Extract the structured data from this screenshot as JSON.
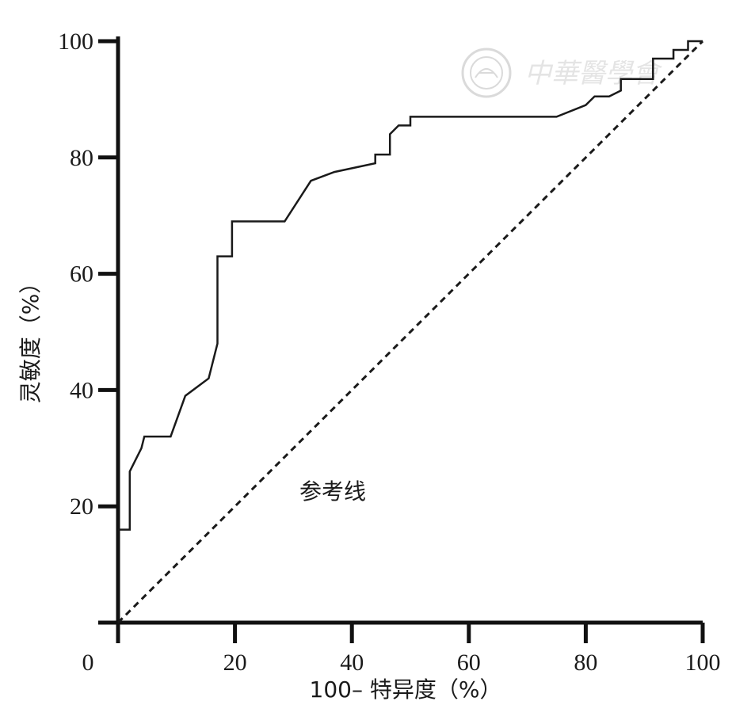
{
  "chart_data": {
    "type": "line",
    "title": "",
    "xlabel": "100– 特异度（%）",
    "ylabel": "灵敏度（%）",
    "xlim": [
      0,
      100
    ],
    "ylim": [
      0,
      100
    ],
    "x_ticks": [
      0,
      20,
      40,
      60,
      80,
      100
    ],
    "x_tick_labels": [
      "0",
      "20",
      "40",
      "60",
      "80",
      "100"
    ],
    "y_ticks": [
      20,
      40,
      60,
      80,
      100
    ],
    "y_tick_labels": [
      "20",
      "40",
      "60",
      "80",
      "100"
    ],
    "grid": false,
    "legend": "none",
    "annotations": [
      {
        "text": "参考线",
        "x": 37,
        "y": 23
      }
    ],
    "series": [
      {
        "style": "solid",
        "color": "#1a1a1a",
        "points": [
          [
            0,
            16
          ],
          [
            2,
            16
          ],
          [
            2,
            26
          ],
          [
            4,
            30
          ],
          [
            4.5,
            32
          ],
          [
            9,
            32
          ],
          [
            11.5,
            39
          ],
          [
            15.5,
            42
          ],
          [
            17,
            48
          ],
          [
            17,
            63
          ],
          [
            19.5,
            63
          ],
          [
            19.5,
            69
          ],
          [
            28.5,
            69
          ],
          [
            33,
            76
          ],
          [
            37,
            77.5
          ],
          [
            44,
            79
          ],
          [
            44,
            80.5
          ],
          [
            46.5,
            80.5
          ],
          [
            46.5,
            84
          ],
          [
            48,
            85.5
          ],
          [
            50,
            85.5
          ],
          [
            50,
            87
          ],
          [
            75,
            87
          ],
          [
            80,
            89
          ],
          [
            81.5,
            90.5
          ],
          [
            84,
            90.5
          ],
          [
            86,
            91.5
          ],
          [
            86,
            93.5
          ],
          [
            91.5,
            93.5
          ],
          [
            91.5,
            97
          ],
          [
            95,
            97
          ],
          [
            95,
            98.5
          ],
          [
            97.5,
            98.5
          ],
          [
            97.5,
            100
          ],
          [
            100,
            100
          ]
        ]
      },
      {
        "style": "dashed",
        "color": "#1a1a1a",
        "points": [
          [
            0,
            0
          ],
          [
            100,
            100
          ]
        ]
      }
    ]
  },
  "watermark": {
    "text": "中華醫學會"
  }
}
